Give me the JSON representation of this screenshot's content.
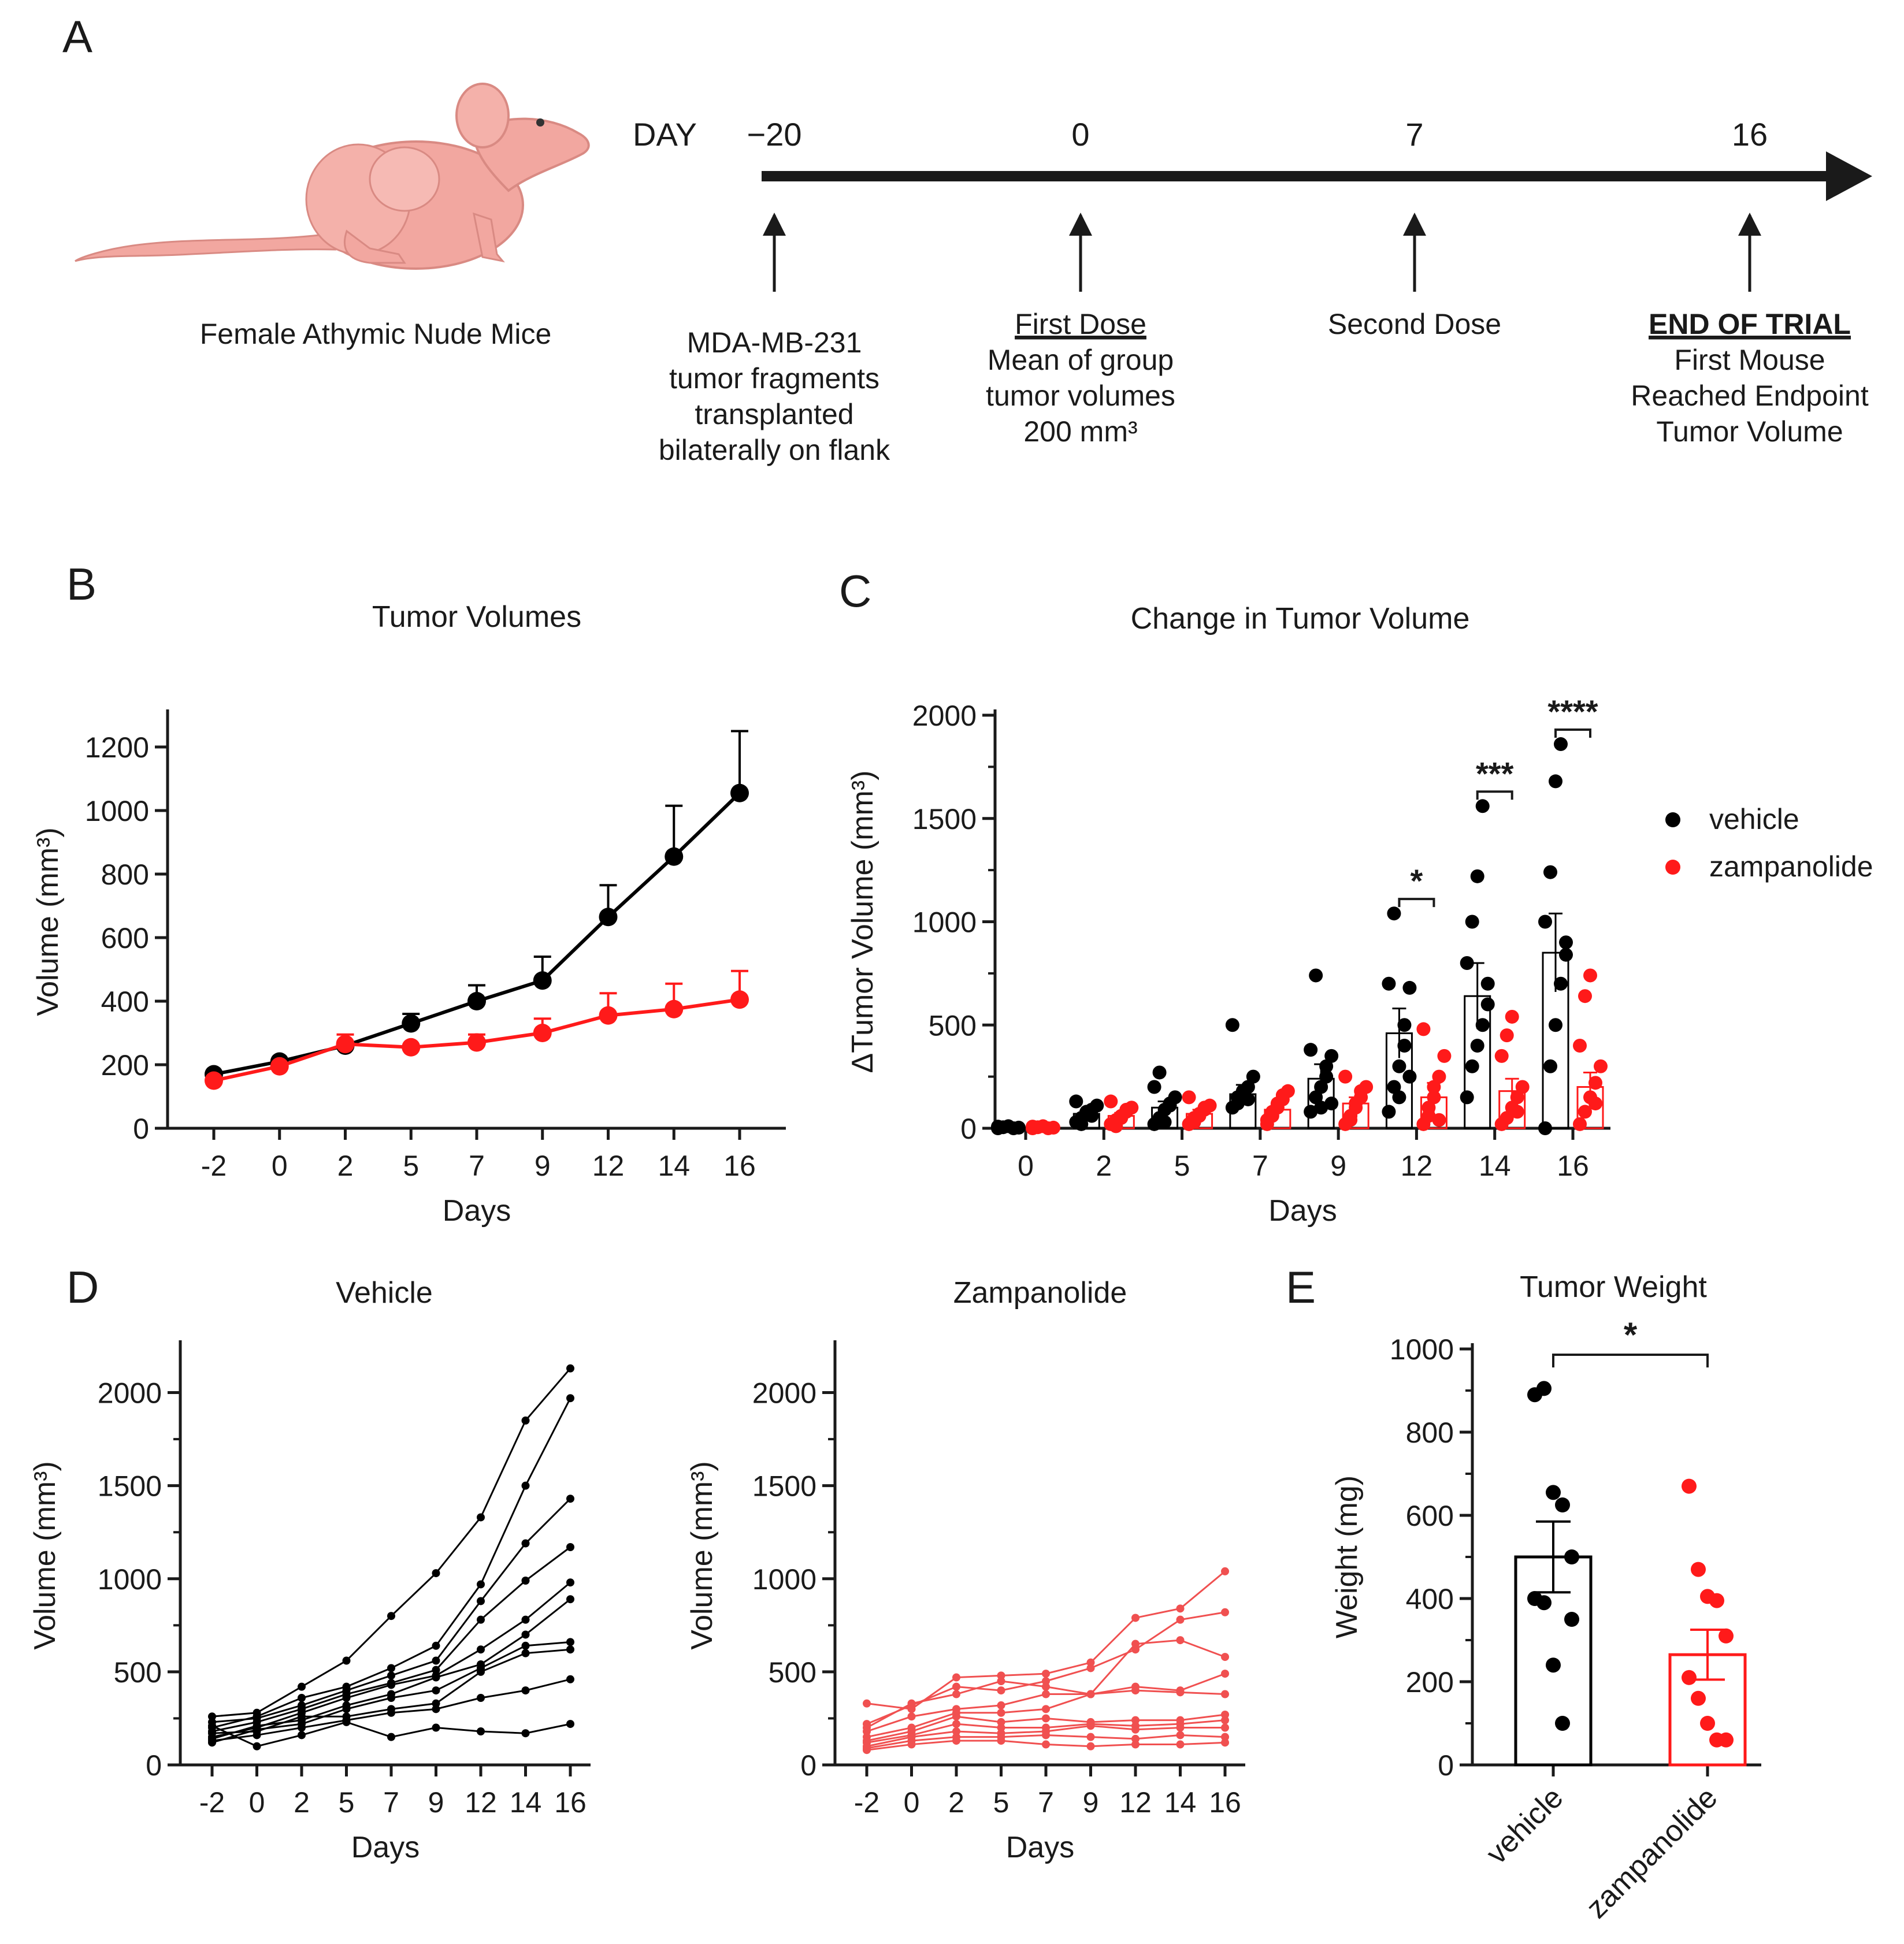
{
  "colors": {
    "vehicle": "#000000",
    "zampanolide": "#ff1a1a",
    "zamp_light": "#f05050",
    "mouse": "#f2a7a0",
    "mouse_dark": "#d98a83",
    "axis": "#1a1a1a"
  },
  "panel_a": {
    "label": "A",
    "mouse_caption": "Female Athymic Nude Mice",
    "day_label": "DAY",
    "days": [
      "−20",
      "0",
      "7",
      "16"
    ],
    "events": [
      {
        "lines": [
          "MDA-MB-231",
          "tumor fragments",
          "transplanted",
          "bilaterally on flank"
        ]
      },
      {
        "heading": "First Dose",
        "lines": [
          "Mean of group",
          "tumor volumes",
          "200 mm³"
        ]
      },
      {
        "lines": [
          "Second Dose"
        ]
      },
      {
        "heading": "END OF TRIAL",
        "lines": [
          "First Mouse",
          "Reached Endpoint",
          "Tumor Volume"
        ]
      }
    ]
  },
  "panel_labels": {
    "b": "B",
    "c": "C",
    "d": "D",
    "e": "E"
  },
  "chart_data": [
    {
      "id": "B",
      "type": "line",
      "title": "Tumor Volumes",
      "xlabel": "Days",
      "ylabel": "Volume (mm³)",
      "categories": [
        "-2",
        "0",
        "2",
        "5",
        "7",
        "9",
        "12",
        "14",
        "16"
      ],
      "ylim": [
        0,
        1300
      ],
      "yticks": [
        0,
        200,
        400,
        600,
        800,
        1000,
        1200
      ],
      "series": [
        {
          "name": "vehicle",
          "values": [
            170,
            210,
            260,
            330,
            400,
            465,
            665,
            855,
            1055
          ],
          "errors": [
            0,
            0,
            0,
            30,
            50,
            75,
            100,
            160,
            195
          ]
        },
        {
          "name": "zampanolide",
          "values": [
            150,
            195,
            265,
            255,
            270,
            300,
            355,
            375,
            405
          ],
          "errors": [
            0,
            0,
            30,
            0,
            25,
            45,
            70,
            80,
            90
          ]
        }
      ]
    },
    {
      "id": "C",
      "type": "bar",
      "title": "Change in Tumor Volume",
      "xlabel": "Days",
      "ylabel": "ΔTumor Volume (mm³)",
      "categories": [
        "0",
        "2",
        "5",
        "7",
        "9",
        "12",
        "14",
        "16"
      ],
      "ylim": [
        0,
        2000
      ],
      "yticks": [
        0,
        500,
        1000,
        1500,
        2000
      ],
      "legend": [
        "vehicle",
        "zampanolide"
      ],
      "series": [
        {
          "name": "vehicle",
          "means": [
            5,
            70,
            100,
            165,
            240,
            460,
            640,
            850
          ],
          "errors": [
            0,
            15,
            30,
            45,
            70,
            120,
            160,
            190
          ],
          "points": [
            [
              0,
              5,
              10,
              -5,
              3,
              8
            ],
            [
              30,
              50,
              70,
              90,
              110,
              130,
              20,
              80,
              60
            ],
            [
              20,
              50,
              90,
              110,
              150,
              200,
              270,
              30,
              120
            ],
            [
              100,
              150,
              180,
              200,
              250,
              500,
              120,
              170,
              140
            ],
            [
              80,
              150,
              200,
              300,
              350,
              380,
              740,
              100,
              250,
              120
            ],
            [
              80,
              200,
              300,
              500,
              680,
              700,
              1040,
              150,
              400,
              250
            ],
            [
              150,
              300,
              400,
              500,
              600,
              800,
              1000,
              1220,
              1560,
              700
            ],
            [
              0,
              300,
              500,
              700,
              840,
              1000,
              1240,
              1680,
              1860,
              900
            ]
          ]
        },
        {
          "name": "zampanolide",
          "means": [
            5,
            60,
            70,
            90,
            120,
            150,
            180,
            200
          ],
          "errors": [
            0,
            15,
            20,
            25,
            30,
            70,
            60,
            70
          ],
          "points": [
            [
              0,
              5,
              10,
              -5,
              3,
              8
            ],
            [
              20,
              40,
              60,
              80,
              100,
              130,
              10,
              50,
              90
            ],
            [
              20,
              50,
              70,
              90,
              110,
              150,
              30,
              60,
              100
            ],
            [
              20,
              60,
              100,
              140,
              180,
              40,
              80,
              120,
              160
            ],
            [
              20,
              60,
              100,
              150,
              200,
              250,
              40,
              120,
              180
            ],
            [
              20,
              60,
              150,
              250,
              350,
              480,
              100,
              200,
              40
            ],
            [
              20,
              50,
              100,
              150,
              200,
              350,
              450,
              540,
              80
            ],
            [
              20,
              80,
              150,
              220,
              300,
              400,
              640,
              740,
              120
            ]
          ]
        }
      ],
      "significance": [
        {
          "category": "12",
          "label": "*"
        },
        {
          "category": "14",
          "label": "***"
        },
        {
          "category": "16",
          "label": "****"
        }
      ]
    },
    {
      "id": "D1",
      "type": "line",
      "title": "Vehicle",
      "xlabel": "Days",
      "ylabel": "Volume (mm³)",
      "categories": [
        "-2",
        "0",
        "2",
        "5",
        "7",
        "9",
        "12",
        "14",
        "16"
      ],
      "ylim": [
        0,
        2250
      ],
      "yticks": [
        0,
        500,
        1000,
        1500,
        2000
      ],
      "series": [
        {
          "name": "m1",
          "values": [
            260,
            280,
            420,
            560,
            800,
            1030,
            1330,
            1850,
            2130
          ]
        },
        {
          "name": "m2",
          "values": [
            200,
            260,
            360,
            420,
            520,
            640,
            970,
            1500,
            1970
          ]
        },
        {
          "name": "m3",
          "values": [
            230,
            250,
            320,
            400,
            480,
            560,
            880,
            1190,
            1430
          ]
        },
        {
          "name": "m4",
          "values": [
            180,
            230,
            300,
            380,
            440,
            510,
            780,
            990,
            1170
          ]
        },
        {
          "name": "m5",
          "values": [
            150,
            200,
            280,
            360,
            430,
            480,
            620,
            780,
            980
          ]
        },
        {
          "name": "m6",
          "values": [
            140,
            210,
            240,
            320,
            380,
            470,
            540,
            700,
            890
          ]
        },
        {
          "name": "m7",
          "values": [
            120,
            190,
            220,
            300,
            360,
            400,
            520,
            640,
            660
          ]
        },
        {
          "name": "m8",
          "values": [
            170,
            180,
            260,
            260,
            300,
            330,
            500,
            600,
            620
          ]
        },
        {
          "name": "m9",
          "values": [
            130,
            160,
            200,
            240,
            280,
            300,
            360,
            400,
            460
          ]
        },
        {
          "name": "m10",
          "values": [
            210,
            100,
            160,
            230,
            150,
            200,
            180,
            170,
            220
          ]
        }
      ]
    },
    {
      "id": "D2",
      "type": "line",
      "title": "Zampanolide",
      "xlabel": "Days",
      "ylabel": "Volume (mm³)",
      "categories": [
        "-2",
        "0",
        "2",
        "5",
        "7",
        "9",
        "12",
        "14",
        "16"
      ],
      "ylim": [
        0,
        2250
      ],
      "yticks": [
        0,
        500,
        1000,
        1500,
        2000
      ],
      "series": [
        {
          "name": "m1",
          "values": [
            330,
            300,
            470,
            480,
            490,
            550,
            790,
            840,
            1040
          ]
        },
        {
          "name": "m2",
          "values": [
            220,
            320,
            420,
            400,
            450,
            520,
            620,
            780,
            820
          ]
        },
        {
          "name": "m3",
          "values": [
            200,
            330,
            380,
            450,
            420,
            380,
            650,
            670,
            580
          ]
        },
        {
          "name": "m4",
          "values": [
            180,
            260,
            300,
            320,
            380,
            380,
            420,
            400,
            490
          ]
        },
        {
          "name": "m5",
          "values": [
            150,
            200,
            280,
            280,
            300,
            380,
            400,
            390,
            380
          ]
        },
        {
          "name": "m6",
          "values": [
            130,
            180,
            260,
            230,
            250,
            230,
            240,
            240,
            270
          ]
        },
        {
          "name": "m7",
          "values": [
            120,
            160,
            220,
            200,
            200,
            220,
            210,
            220,
            240
          ]
        },
        {
          "name": "m8",
          "values": [
            100,
            150,
            180,
            170,
            180,
            210,
            190,
            200,
            200
          ]
        },
        {
          "name": "m9",
          "values": [
            90,
            130,
            150,
            150,
            160,
            150,
            140,
            160,
            150
          ]
        },
        {
          "name": "m10",
          "values": [
            80,
            110,
            130,
            130,
            110,
            100,
            110,
            110,
            120
          ]
        }
      ]
    },
    {
      "id": "E",
      "type": "bar",
      "title": "Tumor Weight",
      "xlabel": "",
      "ylabel": "Weight (mg)",
      "categories": [
        "vehicle",
        "zampanolide"
      ],
      "ylim": [
        0,
        1000
      ],
      "yticks": [
        0,
        200,
        400,
        600,
        800,
        1000
      ],
      "values": [
        500,
        265
      ],
      "errors": [
        85,
        60
      ],
      "points": [
        [
          890,
          905,
          655,
          625,
          500,
          400,
          390,
          240,
          100,
          350
        ],
        [
          670,
          470,
          405,
          395,
          310,
          210,
          160,
          100,
          60,
          60
        ]
      ],
      "significance": [
        {
          "label": "*"
        }
      ]
    }
  ]
}
